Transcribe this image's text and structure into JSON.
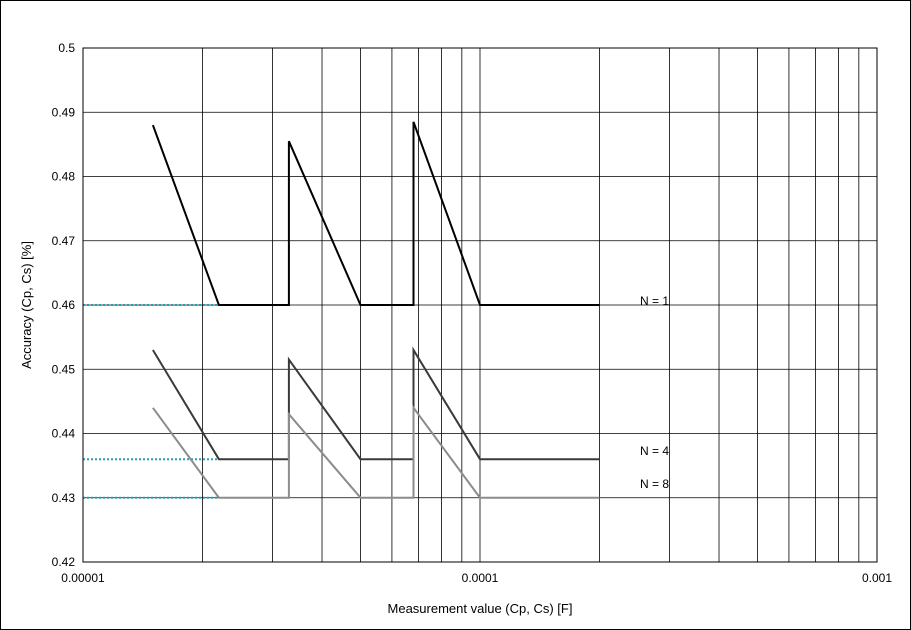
{
  "chart_data": {
    "type": "line",
    "xlabel": "Measurement value (Cp, Cs) [F]",
    "ylabel": "Accuracy (Cp, Cs) [%]",
    "xscale": "log",
    "xlim": [
      1e-05,
      0.001
    ],
    "ylim": [
      0.42,
      0.5
    ],
    "x_tick_labels": [
      "0.00001",
      "0.0001",
      "0.001"
    ],
    "y_tick_labels": [
      "0.42",
      "0.43",
      "0.44",
      "0.45",
      "0.46",
      "0.47",
      "0.48",
      "0.49",
      "0.5"
    ],
    "grid": true,
    "series": [
      {
        "name": "N = 1",
        "color": "#000000",
        "x": [
          1.5e-05,
          2.2e-05,
          3.3e-05,
          3.3e-05,
          5e-05,
          6.8e-05,
          6.8e-05,
          0.0001,
          0.0002
        ],
        "y": [
          0.488,
          0.46,
          0.46,
          0.4855,
          0.46,
          0.46,
          0.4885,
          0.46,
          0.46
        ]
      },
      {
        "name": "N = 4",
        "color": "#3a3a3a",
        "x": [
          1.5e-05,
          2.2e-05,
          3.3e-05,
          3.3e-05,
          5e-05,
          6.8e-05,
          6.8e-05,
          0.0001,
          0.0002
        ],
        "y": [
          0.453,
          0.436,
          0.436,
          0.4515,
          0.436,
          0.436,
          0.453,
          0.436,
          0.436
        ]
      },
      {
        "name": "N = 8",
        "color": "#8c8c8c",
        "x": [
          1.5e-05,
          2.2e-05,
          3.3e-05,
          3.3e-05,
          5e-05,
          6.8e-05,
          6.8e-05,
          0.0001,
          0.0002
        ],
        "y": [
          0.444,
          0.43,
          0.43,
          0.443,
          0.43,
          0.43,
          0.444,
          0.43,
          0.43
        ]
      }
    ],
    "reference_lines": [
      {
        "y": 0.46,
        "x_from": 1e-05,
        "x_to": 2.2e-05,
        "color": "#2aa1b3",
        "style": "dotted"
      },
      {
        "y": 0.436,
        "x_from": 1e-05,
        "x_to": 2.2e-05,
        "color": "#2aa1b3",
        "style": "dotted"
      },
      {
        "y": 0.43,
        "x_from": 1e-05,
        "x_to": 2.2e-05,
        "color": "#2aa1b3",
        "style": "dotted"
      }
    ]
  }
}
